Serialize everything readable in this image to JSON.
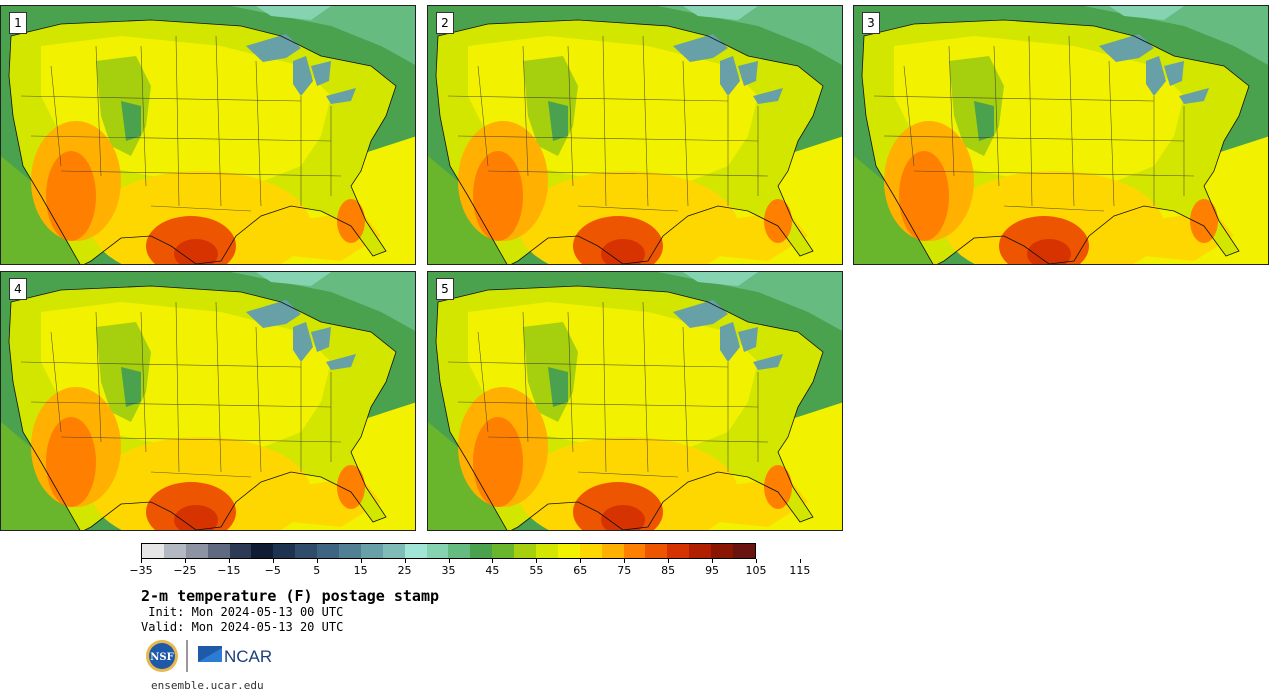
{
  "panels": [
    {
      "label": "1"
    },
    {
      "label": "2"
    },
    {
      "label": "3"
    },
    {
      "label": "4"
    },
    {
      "label": "5"
    }
  ],
  "colorbar": {
    "colors": [
      "#e6e6e6",
      "#b4b8c2",
      "#8d93a3",
      "#5f6a80",
      "#2d3a55",
      "#101c33",
      "#1d3350",
      "#2f4c6b",
      "#3f6481",
      "#517f93",
      "#67a0a6",
      "#7fbcb8",
      "#a2e4d6",
      "#86d3b2",
      "#66bb80",
      "#4aa14e",
      "#69b52b",
      "#a6cf0d",
      "#d2e600",
      "#f2f200",
      "#ffd700",
      "#ffb000",
      "#ff8000",
      "#ee5500",
      "#d63300",
      "#b01f00",
      "#8a1500",
      "#6a1410"
    ],
    "tick_labels": [
      "−35",
      "−25",
      "−15",
      "−5",
      "5",
      "15",
      "25",
      "35",
      "45",
      "55",
      "65",
      "75",
      "85",
      "95",
      "105",
      "115"
    ]
  },
  "title": "2-m temperature (F) postage stamp",
  "init": " Init: Mon 2024-05-13 00 UTC",
  "valid": "Valid: Mon 2024-05-13 20 UTC",
  "logos": {
    "nsf": "NSF",
    "ncar": "NCAR"
  },
  "site": "ensemble.ucar.edu"
}
